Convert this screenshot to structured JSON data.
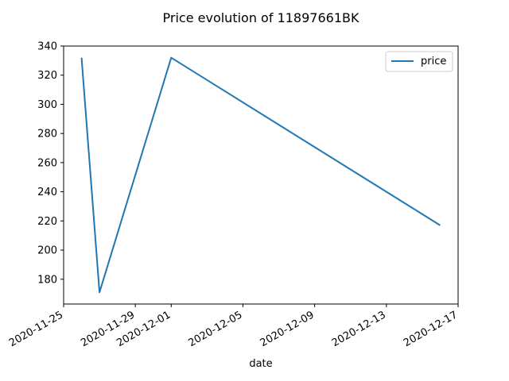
{
  "chart_data": {
    "type": "line",
    "title": "Price evolution of 11897661BK",
    "xlabel": "date",
    "ylabel": "",
    "x_tick_labels": [
      "2020-11-25",
      "2020-11-29",
      "2020-12-01",
      "2020-12-05",
      "2020-12-09",
      "2020-12-13",
      "2020-12-17"
    ],
    "x_ticks": [
      "2020-11-25",
      "2020-11-29",
      "2020-12-01",
      "2020-12-05",
      "2020-12-09",
      "2020-12-13",
      "2020-12-17"
    ],
    "y_ticks": [
      180,
      200,
      220,
      240,
      260,
      280,
      300,
      320,
      340
    ],
    "xlim": [
      "2020-11-25",
      "2020-12-17"
    ],
    "ylim": [
      163,
      340
    ],
    "grid": false,
    "legend_position": "top-right",
    "series": [
      {
        "name": "price",
        "color": "#1f77b4",
        "points": [
          {
            "x": "2020-11-26",
            "y": 332
          },
          {
            "x": "2020-11-27",
            "y": 171
          },
          {
            "x": "2020-12-01",
            "y": 332
          },
          {
            "x": "2020-12-16",
            "y": 217
          }
        ]
      }
    ]
  }
}
